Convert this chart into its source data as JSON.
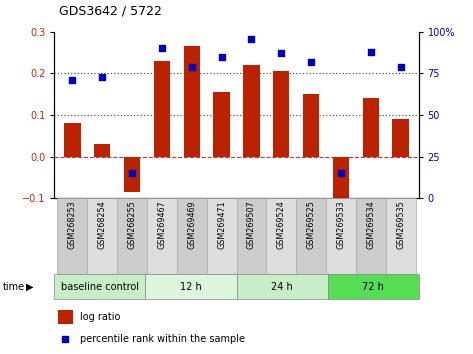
{
  "title": "GDS3642 / 5722",
  "samples": [
    "GSM268253",
    "GSM268254",
    "GSM268255",
    "GSM269467",
    "GSM269469",
    "GSM269471",
    "GSM269507",
    "GSM269524",
    "GSM269525",
    "GSM269533",
    "GSM269534",
    "GSM269535"
  ],
  "log_ratio": [
    0.08,
    0.03,
    -0.085,
    0.23,
    0.265,
    0.155,
    0.22,
    0.205,
    0.15,
    -0.1,
    0.14,
    0.09
  ],
  "percentile_rank": [
    71,
    73,
    15,
    90,
    79,
    85,
    96,
    87,
    82,
    15,
    88,
    79
  ],
  "bar_color": "#BB2200",
  "dot_color": "#0000BB",
  "ylim_left": [
    -0.1,
    0.3
  ],
  "ylim_right": [
    0,
    100
  ],
  "yticks_left": [
    -0.1,
    0.0,
    0.1,
    0.2,
    0.3
  ],
  "yticks_right": [
    0,
    25,
    50,
    75,
    100
  ],
  "hline_0_color": "#CC3333",
  "dotted_line_color": "#555555",
  "group_defs": [
    {
      "start": 0,
      "end": 3,
      "color": "#c8eec8",
      "label": "baseline control"
    },
    {
      "start": 3,
      "end": 6,
      "color": "#ddf5dd",
      "label": "12 h"
    },
    {
      "start": 6,
      "end": 9,
      "color": "#c8eec8",
      "label": "24 h"
    },
    {
      "start": 9,
      "end": 12,
      "color": "#55dd55",
      "label": "72 h"
    }
  ],
  "box_colors": [
    "#cccccc",
    "#dddddd"
  ],
  "left_color": "#CC2200",
  "right_color": "#0000BB",
  "title_fontsize": 9,
  "tick_fontsize": 7,
  "label_fontsize": 5.8,
  "group_fontsize": 7,
  "legend_fontsize": 7
}
